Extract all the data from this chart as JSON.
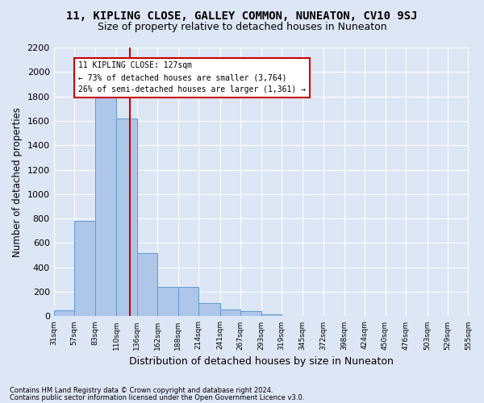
{
  "title1": "11, KIPLING CLOSE, GALLEY COMMON, NUNEATON, CV10 9SJ",
  "title2": "Size of property relative to detached houses in Nuneaton",
  "xlabel": "Distribution of detached houses by size in Nuneaton",
  "ylabel": "Number of detached properties",
  "footer1": "Contains HM Land Registry data © Crown copyright and database right 2024.",
  "footer2": "Contains public sector information licensed under the Open Government Licence v3.0.",
  "annotation_line1": "11 KIPLING CLOSE: 127sqm",
  "annotation_line2": "← 73% of detached houses are smaller (3,764)",
  "annotation_line3": "26% of semi-detached houses are larger (1,361) →",
  "property_size": 127,
  "bar_edges": [
    31,
    57,
    83,
    110,
    136,
    162,
    188,
    214,
    241,
    267,
    293,
    319,
    345,
    372,
    398,
    424,
    450,
    476,
    503,
    529,
    555
  ],
  "bar_heights": [
    50,
    780,
    1820,
    1620,
    520,
    240,
    240,
    110,
    55,
    40,
    15,
    0,
    0,
    0,
    0,
    0,
    0,
    0,
    0,
    0
  ],
  "bar_color": "#aec6e8",
  "bar_edgecolor": "#5b9bd5",
  "vline_color": "#cc0000",
  "vline_x": 127,
  "ylim": [
    0,
    2200
  ],
  "yticks": [
    0,
    200,
    400,
    600,
    800,
    1000,
    1200,
    1400,
    1600,
    1800,
    2000,
    2200
  ],
  "bg_color": "#dce6f5",
  "annotation_box_color": "#ffffff",
  "annotation_box_edgecolor": "#cc0000",
  "title1_fontsize": 10,
  "title2_fontsize": 9,
  "xlabel_fontsize": 9,
  "ylabel_fontsize": 8.5
}
